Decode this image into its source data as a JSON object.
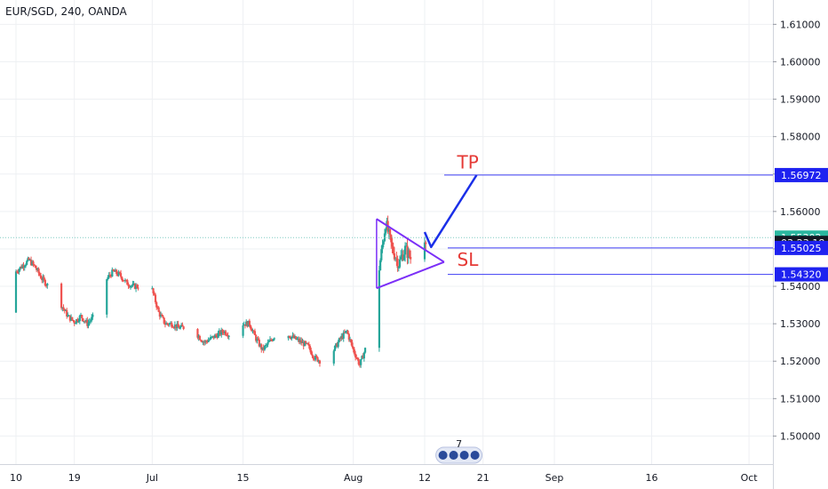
{
  "header": {
    "symbol": "EUR/SGD, 240, OANDA"
  },
  "colors": {
    "up": "#26a69a",
    "down": "#ef5350",
    "level_line": "#3d3df5",
    "badge_blue": "#1e22f0",
    "badge_green": "#2bb7a0",
    "badge_dark": "#131722",
    "triangle": "#7b2ff7",
    "arrow": "#1a2fe8",
    "note": "#e53935",
    "grid": "#eef0f3",
    "current_price_line": "#80cbc4"
  },
  "chart_data": {
    "type": "candlestick",
    "title": "EUR/SGD, 240, OANDA",
    "y_axis": {
      "range": [
        1.4925,
        1.6165
      ],
      "ticks": [
        "1.50000",
        "1.51000",
        "1.52000",
        "1.53000",
        "1.54000",
        "1.55000",
        "1.56000",
        "1.57000",
        "1.58000",
        "1.59000",
        "1.60000",
        "1.61000"
      ],
      "tick_values": [
        1.5,
        1.51,
        1.52,
        1.53,
        1.54,
        1.55,
        1.56,
        1.57,
        1.58,
        1.59,
        1.6,
        1.61
      ]
    },
    "x_axis": {
      "ticks": [
        "10",
        "19",
        "Jul",
        "15",
        "Aug",
        "12",
        "21",
        "Sep",
        "16",
        "Oct"
      ],
      "tick_dates": [
        "2019-06-10",
        "2019-06-19",
        "2019-07-01",
        "2019-07-15",
        "2019-08-01",
        "2019-08-12",
        "2019-08-21",
        "2019-09-01",
        "2019-09-16",
        "2019-10-01"
      ]
    },
    "grid": true,
    "price_path": [
      [
        "2019-06-08",
        1.533
      ],
      [
        "2019-06-09",
        1.54
      ],
      [
        "2019-06-10",
        1.544
      ],
      [
        "2019-06-11",
        1.5455
      ],
      [
        "2019-06-12",
        1.547
      ],
      [
        "2019-06-13",
        1.545
      ],
      [
        "2019-06-14",
        1.542
      ],
      [
        "2019-06-15",
        1.54
      ],
      [
        "2019-06-16",
        1.539
      ],
      [
        "2019-06-17",
        1.535
      ],
      [
        "2019-06-18",
        1.532
      ],
      [
        "2019-06-19",
        1.5305
      ],
      [
        "2019-06-20",
        1.532
      ],
      [
        "2019-06-21",
        1.53
      ],
      [
        "2019-06-22",
        1.532
      ],
      [
        "2019-06-23",
        1.536
      ],
      [
        "2019-06-24",
        1.542
      ],
      [
        "2019-06-25",
        1.544
      ],
      [
        "2019-06-26",
        1.543
      ],
      [
        "2019-06-27",
        1.541
      ],
      [
        "2019-06-28",
        1.54
      ],
      [
        "2019-06-29",
        1.54
      ],
      [
        "2019-06-30",
        1.5405
      ],
      [
        "2019-07-01",
        1.539
      ],
      [
        "2019-07-02",
        1.533
      ],
      [
        "2019-07-03",
        1.53
      ],
      [
        "2019-07-04",
        1.53
      ],
      [
        "2019-07-05",
        1.529
      ],
      [
        "2019-07-06",
        1.529
      ],
      [
        "2019-07-07",
        1.5285
      ],
      [
        "2019-07-08",
        1.527
      ],
      [
        "2019-07-09",
        1.525
      ],
      [
        "2019-07-10",
        1.526
      ],
      [
        "2019-07-11",
        1.527
      ],
      [
        "2019-07-12",
        1.528
      ],
      [
        "2019-07-13",
        1.527
      ],
      [
        "2019-07-14",
        1.529
      ],
      [
        "2019-07-15",
        1.53
      ],
      [
        "2019-07-16",
        1.53
      ],
      [
        "2019-07-17",
        1.526
      ],
      [
        "2019-07-18",
        1.523
      ],
      [
        "2019-07-19",
        1.525
      ],
      [
        "2019-07-20",
        1.527
      ],
      [
        "2019-07-21",
        1.529
      ],
      [
        "2019-07-22",
        1.527
      ],
      [
        "2019-07-23",
        1.526
      ],
      [
        "2019-07-24",
        1.525
      ],
      [
        "2019-07-25",
        1.524
      ],
      [
        "2019-07-26",
        1.521
      ],
      [
        "2019-07-27",
        1.52
      ],
      [
        "2019-07-28",
        1.519
      ],
      [
        "2019-07-29",
        1.523
      ],
      [
        "2019-07-30",
        1.526
      ],
      [
        "2019-07-31",
        1.528
      ],
      [
        "2019-08-01",
        1.523
      ],
      [
        "2019-08-02",
        1.519
      ],
      [
        "2019-08-03",
        1.524
      ],
      [
        "2019-08-04",
        1.53
      ],
      [
        "2019-08-05",
        1.545
      ],
      [
        "2019-08-06",
        1.557
      ],
      [
        "2019-08-07",
        1.55
      ],
      [
        "2019-08-08",
        1.546
      ],
      [
        "2019-08-09",
        1.55
      ],
      [
        "2019-08-10",
        1.547
      ],
      [
        "2019-08-11",
        1.552
      ],
      [
        "2019-08-12",
        1.553
      ],
      [
        "2019-08-13",
        1.553
      ]
    ],
    "levels": [
      {
        "name": "take-profit",
        "value": 1.56972,
        "label": "1.56972",
        "style": "blue"
      },
      {
        "name": "current-price",
        "value": 1.55302,
        "label": "1.55302",
        "style": "green"
      },
      {
        "name": "countdown",
        "value": 1.5516,
        "label": "03:23:18",
        "style": "dark"
      },
      {
        "name": "entry",
        "value": 1.55025,
        "label": "1.55025",
        "style": "blue"
      },
      {
        "name": "stop-loss",
        "value": 1.5432,
        "label": "1.54320",
        "style": "blue"
      }
    ],
    "annotations": [
      {
        "name": "tp-label",
        "text": "TP",
        "date": "2019-08-17",
        "value": 1.5715
      },
      {
        "name": "sl-label",
        "text": "SL",
        "date": "2019-08-17",
        "value": 1.5455
      }
    ],
    "triangle": {
      "apex": [
        "2019-08-15",
        1.5465
      ],
      "top_start": [
        "2019-08-05",
        1.558
      ],
      "bottom_start": [
        "2019-08-05",
        1.5395
      ]
    },
    "projection_arrow": [
      [
        "2019-08-12",
        1.5545
      ],
      [
        "2019-08-13",
        1.5505
      ],
      [
        "2019-08-20",
        1.5697
      ]
    ],
    "events_badge": {
      "count": "7",
      "date": "2019-08-14"
    }
  }
}
